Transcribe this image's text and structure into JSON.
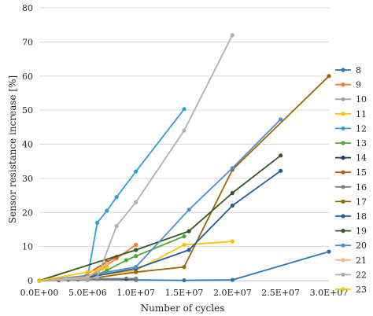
{
  "chart_data": {
    "type": "line",
    "xlabel": "Number of cycles",
    "ylabel": "Sensor resistance increase [%]",
    "xlim": [
      0,
      30000000
    ],
    "ylim": [
      0,
      80
    ],
    "xticks": [
      0,
      5000000,
      10000000,
      15000000,
      20000000,
      25000000,
      30000000
    ],
    "xtick_labels": [
      "0.0E+00",
      "5.0E+06",
      "1.0E+07",
      "1.5E+07",
      "2.0E+07",
      "2.5E+07",
      "3.0E+07"
    ],
    "yticks": [
      0,
      10,
      20,
      30,
      40,
      50,
      60,
      70,
      80
    ],
    "ytick_labels": [
      "0",
      "10",
      "20",
      "30",
      "40",
      "50",
      "60",
      "70",
      "80"
    ],
    "grid": "horizontal",
    "legend_position": "right",
    "series": [
      {
        "name": "8",
        "color": "#2e75b6",
        "x": [
          0,
          2000000,
          5000000,
          10000000,
          15000000,
          20000000,
          30000000
        ],
        "y": [
          0,
          0.1,
          0.2,
          0.2,
          0.1,
          0.2,
          8.5
        ]
      },
      {
        "name": "9",
        "color": "#ed7d31",
        "x": [
          0,
          3000000,
          5500000,
          6500000,
          8000000,
          10000000
        ],
        "y": [
          0,
          0.3,
          1.5,
          3.5,
          6.5,
          10.5
        ]
      },
      {
        "name": "10",
        "color": "#a5a5a5",
        "x": [
          0,
          5000000,
          10000000
        ],
        "y": [
          0,
          0.2,
          0.4
        ]
      },
      {
        "name": "11",
        "color": "#ffc000",
        "x": [
          0,
          4000000,
          6000000,
          10000000,
          15000000,
          20000000
        ],
        "y": [
          0,
          0.5,
          1.5,
          3,
          10.5,
          11.5
        ]
      },
      {
        "name": "12",
        "color": "#2e9fd8",
        "x": [
          0,
          3000000,
          5000000,
          6000000,
          7000000,
          8000000,
          10000000,
          15000000
        ],
        "y": [
          0,
          0.5,
          1,
          17,
          20.5,
          24.5,
          32,
          50.3
        ]
      },
      {
        "name": "13",
        "color": "#4ea72e",
        "x": [
          0,
          5000000,
          7000000,
          9000000,
          10000000,
          15000000
        ],
        "y": [
          0,
          0.5,
          3,
          6,
          7.2,
          13
        ]
      },
      {
        "name": "14",
        "color": "#1f3864",
        "x": [
          0,
          3000000,
          5000000,
          9000000,
          10000000
        ],
        "y": [
          0,
          0.3,
          0.5,
          0.5,
          0.5
        ]
      },
      {
        "name": "15",
        "color": "#c55a11",
        "x": [
          0,
          4000000,
          7000000,
          8000000
        ],
        "y": [
          0,
          0.3,
          5.5,
          7
        ]
      },
      {
        "name": "16",
        "color": "#7f7f7f",
        "x": [
          0,
          4000000,
          6000000,
          10000000
        ],
        "y": [
          0,
          0.3,
          0.5,
          0.6
        ]
      },
      {
        "name": "17",
        "color": "#9c6500",
        "x": [
          0,
          5000000,
          10000000,
          15000000,
          20000000,
          30000000
        ],
        "y": [
          0,
          0.5,
          2.5,
          4,
          32.5,
          60
        ]
      },
      {
        "name": "18",
        "color": "#1f5c99",
        "x": [
          0,
          5000000,
          10000000,
          15500000,
          20000000,
          25000000
        ],
        "y": [
          0,
          1,
          3.5,
          9,
          22,
          32.2
        ]
      },
      {
        "name": "19",
        "color": "#375623",
        "x": [
          0,
          10000000,
          15500000,
          20000000,
          25000000
        ],
        "y": [
          0,
          9,
          14.5,
          25.7,
          36.7
        ]
      },
      {
        "name": "20",
        "color": "#4d8fd1",
        "x": [
          0,
          5000000,
          10000000,
          15500000,
          20000000,
          25000000
        ],
        "y": [
          0,
          1.5,
          4,
          20.8,
          33,
          47.3
        ]
      },
      {
        "name": "21",
        "color": "#f4b183",
        "x": [
          0,
          5000000,
          6000000,
          7000000
        ],
        "y": [
          0,
          1,
          3,
          5
        ]
      },
      {
        "name": "22",
        "color": "#b0b0b0",
        "x": [
          0,
          5000000,
          6000000,
          8000000,
          10000000,
          15000000,
          20000000
        ],
        "y": [
          0,
          0.5,
          1,
          16,
          23,
          44,
          72
        ]
      },
      {
        "name": "23",
        "color": "#ffc000",
        "x": [
          0,
          5000000,
          6500000,
          7000000
        ],
        "y": [
          0,
          2.5,
          3.5,
          4
        ]
      }
    ]
  }
}
